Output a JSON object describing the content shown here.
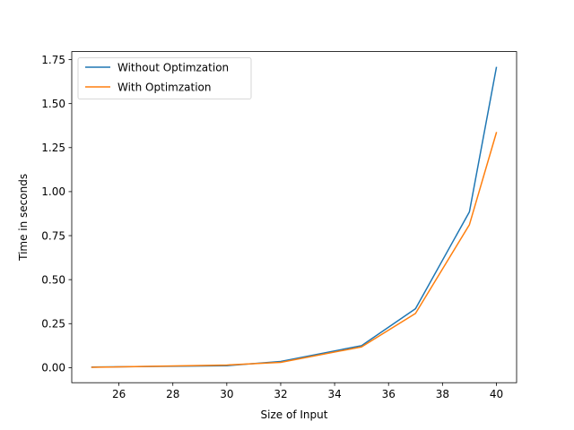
{
  "chart_data": {
    "type": "line",
    "title": "",
    "xlabel": "Size of Input",
    "ylabel": "Time in seconds",
    "xlim": [
      24.25,
      40.75
    ],
    "ylim": [
      -0.0855,
      1.7955
    ],
    "xticks": [
      26,
      28,
      30,
      32,
      34,
      36,
      38,
      40
    ],
    "yticks": [
      0.0,
      0.25,
      0.5,
      0.75,
      1.0,
      1.25,
      1.5,
      1.75
    ],
    "xtick_labels": [
      "26",
      "28",
      "30",
      "32",
      "34",
      "36",
      "38",
      "40"
    ],
    "ytick_labels": [
      "0.00",
      "0.25",
      "0.50",
      "0.75",
      "1.00",
      "1.25",
      "1.50",
      "1.75"
    ],
    "grid": false,
    "legend_position": "top-left",
    "x": [
      25,
      30,
      32,
      35,
      37,
      39,
      40
    ],
    "series": [
      {
        "name": "Without Optimzation",
        "color": "#1f77b4",
        "values": [
          0.003,
          0.011,
          0.035,
          0.125,
          0.335,
          0.885,
          1.705
        ]
      },
      {
        "name": "With Optimzation",
        "color": "#ff7f0e",
        "values": [
          0.002,
          0.015,
          0.03,
          0.118,
          0.308,
          0.812,
          1.335
        ]
      }
    ]
  }
}
